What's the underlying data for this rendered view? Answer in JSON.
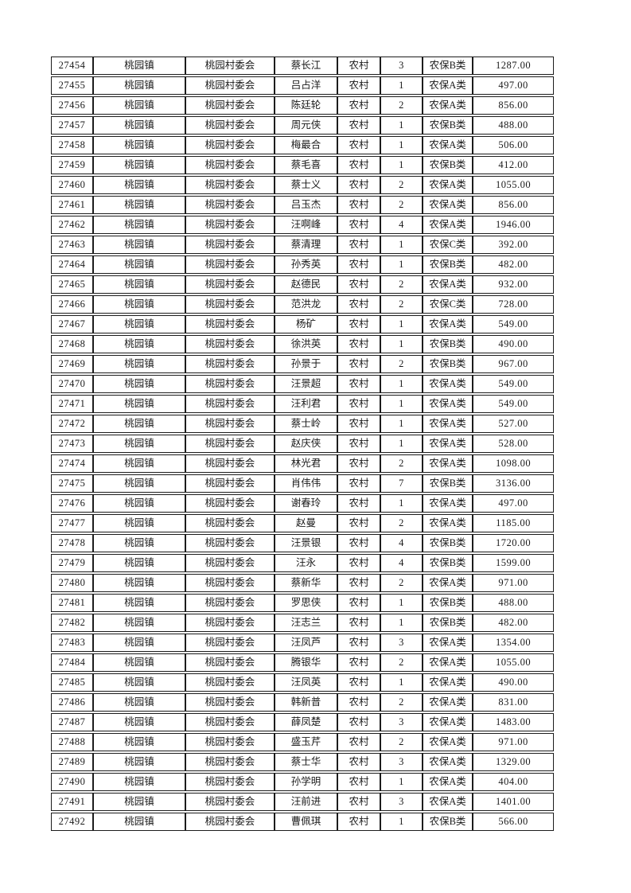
{
  "page": {
    "background_color": "#ffffff",
    "text_color": "#1a1a1a",
    "border_color": "#1c1c1c"
  },
  "table": {
    "column_keys": [
      "serial_number",
      "town",
      "village_committee",
      "name",
      "residence_type",
      "person_count",
      "insurance_category",
      "amount"
    ],
    "rows": [
      [
        "27454",
        "桃园镇",
        "桃园村委会",
        "蔡长江",
        "农村",
        "3",
        "农保B类",
        "1287.00"
      ],
      [
        "27455",
        "桃园镇",
        "桃园村委会",
        "吕占洋",
        "农村",
        "1",
        "农保A类",
        "497.00"
      ],
      [
        "27456",
        "桃园镇",
        "桃园村委会",
        "陈廷轮",
        "农村",
        "2",
        "农保A类",
        "856.00"
      ],
      [
        "27457",
        "桃园镇",
        "桃园村委会",
        "周元侠",
        "农村",
        "1",
        "农保B类",
        "488.00"
      ],
      [
        "27458",
        "桃园镇",
        "桃园村委会",
        "梅最合",
        "农村",
        "1",
        "农保A类",
        "506.00"
      ],
      [
        "27459",
        "桃园镇",
        "桃园村委会",
        "蔡毛喜",
        "农村",
        "1",
        "农保B类",
        "412.00"
      ],
      [
        "27460",
        "桃园镇",
        "桃园村委会",
        "蔡士义",
        "农村",
        "2",
        "农保A类",
        "1055.00"
      ],
      [
        "27461",
        "桃园镇",
        "桃园村委会",
        "吕玉杰",
        "农村",
        "2",
        "农保A类",
        "856.00"
      ],
      [
        "27462",
        "桃园镇",
        "桃园村委会",
        "汪啊峰",
        "农村",
        "4",
        "农保A类",
        "1946.00"
      ],
      [
        "27463",
        "桃园镇",
        "桃园村委会",
        "蔡清理",
        "农村",
        "1",
        "农保C类",
        "392.00"
      ],
      [
        "27464",
        "桃园镇",
        "桃园村委会",
        "孙秀英",
        "农村",
        "1",
        "农保B类",
        "482.00"
      ],
      [
        "27465",
        "桃园镇",
        "桃园村委会",
        "赵德民",
        "农村",
        "2",
        "农保A类",
        "932.00"
      ],
      [
        "27466",
        "桃园镇",
        "桃园村委会",
        "范洪龙",
        "农村",
        "2",
        "农保C类",
        "728.00"
      ],
      [
        "27467",
        "桃园镇",
        "桃园村委会",
        "杨矿",
        "农村",
        "1",
        "农保A类",
        "549.00"
      ],
      [
        "27468",
        "桃园镇",
        "桃园村委会",
        "徐洪英",
        "农村",
        "1",
        "农保B类",
        "490.00"
      ],
      [
        "27469",
        "桃园镇",
        "桃园村委会",
        "孙景于",
        "农村",
        "2",
        "农保B类",
        "967.00"
      ],
      [
        "27470",
        "桃园镇",
        "桃园村委会",
        "汪景超",
        "农村",
        "1",
        "农保A类",
        "549.00"
      ],
      [
        "27471",
        "桃园镇",
        "桃园村委会",
        "汪利君",
        "农村",
        "1",
        "农保A类",
        "549.00"
      ],
      [
        "27472",
        "桃园镇",
        "桃园村委会",
        "蔡士岭",
        "农村",
        "1",
        "农保A类",
        "527.00"
      ],
      [
        "27473",
        "桃园镇",
        "桃园村委会",
        "赵庆侠",
        "农村",
        "1",
        "农保A类",
        "528.00"
      ],
      [
        "27474",
        "桃园镇",
        "桃园村委会",
        "林光君",
        "农村",
        "2",
        "农保A类",
        "1098.00"
      ],
      [
        "27475",
        "桃园镇",
        "桃园村委会",
        "肖伟伟",
        "农村",
        "7",
        "农保B类",
        "3136.00"
      ],
      [
        "27476",
        "桃园镇",
        "桃园村委会",
        "谢春玲",
        "农村",
        "1",
        "农保A类",
        "497.00"
      ],
      [
        "27477",
        "桃园镇",
        "桃园村委会",
        "赵曼",
        "农村",
        "2",
        "农保A类",
        "1185.00"
      ],
      [
        "27478",
        "桃园镇",
        "桃园村委会",
        "汪景银",
        "农村",
        "4",
        "农保B类",
        "1720.00"
      ],
      [
        "27479",
        "桃园镇",
        "桃园村委会",
        "汪永",
        "农村",
        "4",
        "农保B类",
        "1599.00"
      ],
      [
        "27480",
        "桃园镇",
        "桃园村委会",
        "蔡新华",
        "农村",
        "2",
        "农保A类",
        "971.00"
      ],
      [
        "27481",
        "桃园镇",
        "桃园村委会",
        "罗思侠",
        "农村",
        "1",
        "农保B类",
        "488.00"
      ],
      [
        "27482",
        "桃园镇",
        "桃园村委会",
        "汪志兰",
        "农村",
        "1",
        "农保B类",
        "482.00"
      ],
      [
        "27483",
        "桃园镇",
        "桃园村委会",
        "汪凤芦",
        "农村",
        "3",
        "农保A类",
        "1354.00"
      ],
      [
        "27484",
        "桃园镇",
        "桃园村委会",
        "腾银华",
        "农村",
        "2",
        "农保A类",
        "1055.00"
      ],
      [
        "27485",
        "桃园镇",
        "桃园村委会",
        "汪凤英",
        "农村",
        "1",
        "农保A类",
        "490.00"
      ],
      [
        "27486",
        "桃园镇",
        "桃园村委会",
        "韩新普",
        "农村",
        "2",
        "农保A类",
        "831.00"
      ],
      [
        "27487",
        "桃园镇",
        "桃园村委会",
        "薛凤楚",
        "农村",
        "3",
        "农保A类",
        "1483.00"
      ],
      [
        "27488",
        "桃园镇",
        "桃园村委会",
        "盛玉芹",
        "农村",
        "2",
        "农保A类",
        "971.00"
      ],
      [
        "27489",
        "桃园镇",
        "桃园村委会",
        "蔡士华",
        "农村",
        "3",
        "农保A类",
        "1329.00"
      ],
      [
        "27490",
        "桃园镇",
        "桃园村委会",
        "孙学明",
        "农村",
        "1",
        "农保A类",
        "404.00"
      ],
      [
        "27491",
        "桃园镇",
        "桃园村委会",
        "汪前进",
        "农村",
        "3",
        "农保A类",
        "1401.00"
      ],
      [
        "27492",
        "桃园镇",
        "桃园村委会",
        "曹佩琪",
        "农村",
        "1",
        "农保B类",
        "566.00"
      ]
    ]
  }
}
